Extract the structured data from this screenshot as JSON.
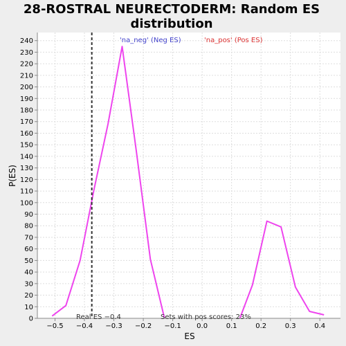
{
  "chart_data": {
    "type": "line",
    "title_line1": "28-ROSTRAL NEURECTODERM: Random ES",
    "title_line2": "distribution",
    "xlabel": "ES",
    "ylabel": "P(ES)",
    "xlim": [
      -0.56,
      0.47
    ],
    "ylim": [
      0,
      247
    ],
    "x_ticks": [
      -0.5,
      -0.4,
      -0.3,
      -0.2,
      -0.1,
      0.0,
      0.1,
      0.2,
      0.3,
      0.4
    ],
    "x_tick_labels": [
      "−0.5",
      "−0.4",
      "−0.3",
      "−0.2",
      "−0.1",
      "0.0",
      "0.1",
      "0.2",
      "0.3",
      "0.4"
    ],
    "y_ticks": [
      0,
      10,
      20,
      30,
      40,
      50,
      60,
      70,
      80,
      90,
      100,
      110,
      120,
      130,
      140,
      150,
      160,
      170,
      180,
      190,
      200,
      210,
      220,
      230,
      240
    ],
    "grid": true,
    "series": [
      {
        "name": "'na_neg' (Neg ES)",
        "color": "#ee44ee",
        "points": [
          [
            -0.51,
            2
          ],
          [
            -0.463,
            11
          ],
          [
            -0.415,
            50
          ],
          [
            -0.367,
            112
          ],
          [
            -0.32,
            168
          ],
          [
            -0.272,
            235
          ],
          [
            -0.224,
            145
          ],
          [
            -0.176,
            51
          ],
          [
            -0.128,
            0
          ]
        ]
      },
      {
        "name": "'na_pos' (Pos ES)",
        "color": "#ee44ee",
        "points": [
          [
            0.128,
            0
          ],
          [
            0.171,
            29
          ],
          [
            0.22,
            84
          ],
          [
            0.268,
            79
          ],
          [
            0.317,
            27
          ],
          [
            0.365,
            6
          ],
          [
            0.414,
            3
          ]
        ]
      }
    ],
    "legend_neg": "'na_neg' (Neg ES)",
    "legend_pos": "'na_pos' (Pos ES)",
    "legend_neg_color": "#4444cc",
    "legend_pos_color": "#dd3333",
    "real_es": -0.375,
    "real_es_label": "Real ES −0.4",
    "sets_label": "Sets with pos scores: 23%"
  }
}
